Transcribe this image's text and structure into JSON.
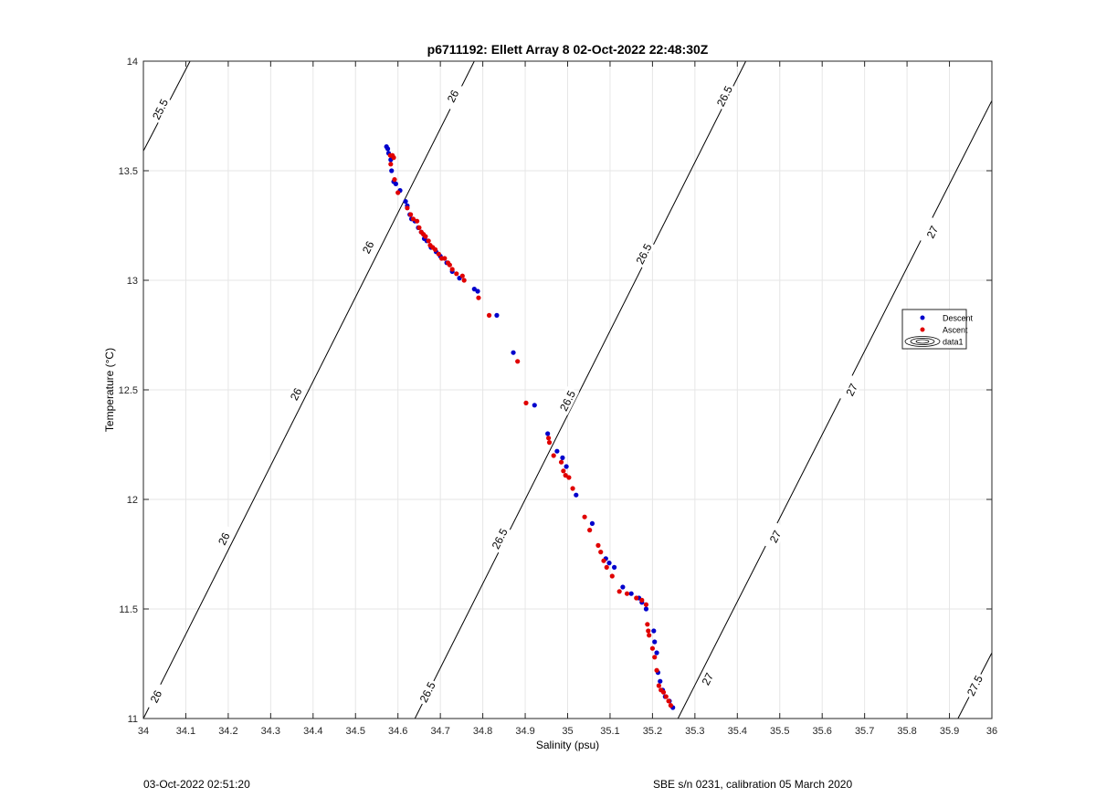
{
  "chart_data": {
    "type": "scatter",
    "title": "p6711192: Ellett Array 8 02-Oct-2022 22:48:30Z",
    "xlabel": "Salinity (psu)",
    "ylabel": "Temperature (°C)",
    "xlim": [
      34,
      36
    ],
    "ylim": [
      11,
      14
    ],
    "xticks": [
      "34",
      "34.1",
      "34.2",
      "34.3",
      "34.4",
      "34.5",
      "34.6",
      "34.7",
      "34.8",
      "34.9",
      "35",
      "35.1",
      "35.2",
      "35.3",
      "35.4",
      "35.5",
      "35.6",
      "35.7",
      "35.8",
      "35.9",
      "36"
    ],
    "yticks": [
      "11",
      "11.5",
      "12",
      "12.5",
      "13",
      "13.5",
      "14"
    ],
    "grid": true,
    "legend": {
      "position": "right",
      "entries": [
        {
          "label": "Descent",
          "color": "#0000cc",
          "marker": "dot"
        },
        {
          "label": "Ascent",
          "color": "#e00000",
          "marker": "dot"
        },
        {
          "label": "data1",
          "color": "#000000",
          "marker": "contour"
        }
      ]
    },
    "contours": [
      {
        "level": "25.5",
        "x": [
          34.0,
          34.11
        ],
        "y": [
          13.59,
          14.0
        ]
      },
      {
        "level": "26",
        "x": [
          34.0,
          34.78
        ],
        "y": [
          11.0,
          14.0
        ]
      },
      {
        "level": "26.5",
        "x": [
          34.64,
          35.42
        ],
        "y": [
          11.0,
          14.0
        ]
      },
      {
        "level": "27",
        "x": [
          35.26,
          36.0
        ],
        "y": [
          11.0,
          13.82
        ]
      },
      {
        "level": "27.5",
        "x": [
          35.92,
          36.0
        ],
        "y": [
          11.0,
          11.3
        ]
      }
    ],
    "contour_labels": [
      {
        "text": "25.5",
        "x": 34.04,
        "y": 13.78
      },
      {
        "text": "26",
        "x": 34.73,
        "y": 13.84
      },
      {
        "text": "26",
        "x": 34.53,
        "y": 13.15
      },
      {
        "text": "26",
        "x": 34.36,
        "y": 12.48
      },
      {
        "text": "26",
        "x": 34.19,
        "y": 11.82
      },
      {
        "text": "26",
        "x": 34.03,
        "y": 11.1
      },
      {
        "text": "26.5",
        "x": 35.37,
        "y": 13.84
      },
      {
        "text": "26.5",
        "x": 35.18,
        "y": 13.12
      },
      {
        "text": "26.5",
        "x": 35.0,
        "y": 12.45
      },
      {
        "text": "26.5",
        "x": 34.84,
        "y": 11.82
      },
      {
        "text": "26.5",
        "x": 34.67,
        "y": 11.12
      },
      {
        "text": "27",
        "x": 35.86,
        "y": 13.22
      },
      {
        "text": "27",
        "x": 35.67,
        "y": 12.5
      },
      {
        "text": "27",
        "x": 35.49,
        "y": 11.83
      },
      {
        "text": "27",
        "x": 35.33,
        "y": 11.18
      },
      {
        "text": "27.5",
        "x": 35.96,
        "y": 11.15
      }
    ],
    "series": [
      {
        "name": "Descent",
        "color": "#0000cc",
        "x": [
          34.573,
          34.576,
          34.578,
          34.583,
          34.585,
          34.59,
          34.595,
          34.605,
          34.618,
          34.622,
          34.628,
          34.632,
          34.64,
          34.648,
          34.655,
          34.662,
          34.668,
          34.678,
          34.69,
          34.7,
          34.715,
          34.728,
          34.745,
          34.78,
          34.788,
          34.833,
          34.872,
          34.922,
          34.953,
          34.975,
          34.988,
          34.997,
          35.02,
          35.058,
          35.09,
          35.098,
          35.11,
          35.13,
          35.15,
          35.168,
          35.175,
          35.185,
          35.203,
          35.205,
          35.21,
          35.213,
          35.218,
          35.224,
          35.23,
          35.24,
          35.248
        ],
        "y": [
          13.61,
          13.6,
          13.58,
          13.55,
          13.5,
          13.45,
          13.44,
          13.41,
          13.36,
          13.34,
          13.3,
          13.28,
          13.27,
          13.24,
          13.22,
          13.19,
          13.18,
          13.15,
          13.13,
          13.11,
          13.08,
          13.04,
          13.01,
          12.96,
          12.95,
          12.84,
          12.67,
          12.43,
          12.3,
          12.22,
          12.19,
          12.15,
          12.02,
          11.89,
          11.73,
          11.71,
          11.69,
          11.6,
          11.57,
          11.55,
          11.53,
          11.5,
          11.4,
          11.35,
          11.3,
          11.21,
          11.17,
          11.13,
          11.1,
          11.08,
          11.05
        ]
      },
      {
        "name": "Ascent",
        "color": "#e00000",
        "x": [
          34.582,
          34.587,
          34.583,
          34.59,
          34.592,
          34.6,
          34.622,
          34.63,
          34.636,
          34.645,
          34.65,
          34.655,
          34.66,
          34.665,
          34.672,
          34.676,
          34.682,
          34.688,
          34.696,
          34.703,
          34.71,
          34.718,
          34.722,
          34.728,
          34.738,
          34.752,
          34.756,
          34.79,
          34.815,
          34.882,
          34.902,
          34.955,
          34.957,
          34.967,
          34.985,
          34.99,
          34.995,
          35.003,
          35.012,
          35.04,
          35.052,
          35.072,
          35.078,
          35.085,
          35.092,
          35.105,
          35.122,
          35.14,
          35.162,
          35.175,
          35.185,
          35.188,
          35.19,
          35.192,
          35.2,
          35.205,
          35.21,
          35.215,
          35.22,
          35.226,
          35.232,
          35.238,
          35.243
        ],
        "y": [
          13.57,
          13.57,
          13.53,
          13.56,
          13.46,
          13.4,
          13.33,
          13.3,
          13.28,
          13.27,
          13.24,
          13.22,
          13.21,
          13.2,
          13.18,
          13.16,
          13.15,
          13.14,
          13.12,
          13.1,
          13.1,
          13.08,
          13.07,
          13.05,
          13.03,
          13.02,
          13.0,
          12.92,
          12.84,
          12.63,
          12.44,
          12.28,
          12.26,
          12.2,
          12.17,
          12.13,
          12.11,
          12.1,
          12.05,
          11.92,
          11.86,
          11.79,
          11.76,
          11.72,
          11.69,
          11.65,
          11.58,
          11.57,
          11.55,
          11.54,
          11.52,
          11.43,
          11.4,
          11.38,
          11.32,
          11.28,
          11.22,
          11.15,
          11.13,
          11.12,
          11.1,
          11.08,
          11.06
        ]
      }
    ]
  },
  "footer": {
    "left": "03-Oct-2022 02:51:20",
    "right": "SBE s/n 0231, calibration 05 March 2020"
  }
}
